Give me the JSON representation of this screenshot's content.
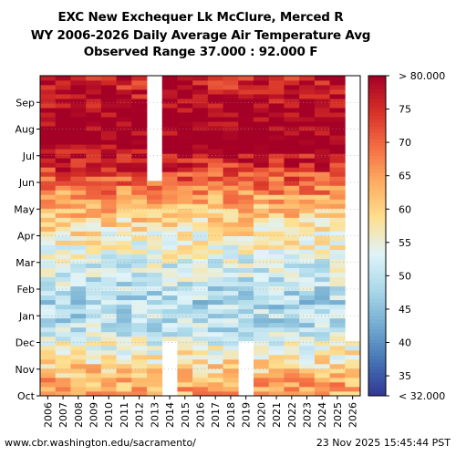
{
  "chart_data": {
    "type": "heatmap",
    "title": "EXC New Exchequer Lk McClure, Merced R",
    "subtitle": "WY 2006-2026 Daily Average Air Temperature Avg",
    "range_text": "Observed Range 37.000 : 92.000 F",
    "x_categories": [
      "2006",
      "2007",
      "2008",
      "2009",
      "2010",
      "2011",
      "2012",
      "2013",
      "2014",
      "2015",
      "2016",
      "2017",
      "2018",
      "2019",
      "2020",
      "2021",
      "2022",
      "2023",
      "2024",
      "2025",
      "2026"
    ],
    "y_month_ticks": [
      "Oct",
      "Nov",
      "Dec",
      "Jan",
      "Feb",
      "Mar",
      "Apr",
      "May",
      "Jun",
      "Jul",
      "Aug",
      "Sep"
    ],
    "colorbar": {
      "min": 32,
      "max": 80,
      "units": "F",
      "ticks": [
        35,
        40,
        45,
        50,
        55,
        60,
        65,
        70,
        75
      ],
      "top_label": "> 80.000",
      "bottom_label": "< 32.000"
    },
    "monthly_profile": [
      {
        "month": "Oct",
        "value": 64
      },
      {
        "month": "Nov",
        "value": 57
      },
      {
        "month": "Dec",
        "value": 50
      },
      {
        "month": "Jan",
        "value": 48
      },
      {
        "month": "Feb",
        "value": 51
      },
      {
        "month": "Mar",
        "value": 55
      },
      {
        "month": "Apr",
        "value": 59
      },
      {
        "month": "May",
        "value": 66
      },
      {
        "month": "Jun",
        "value": 74
      },
      {
        "month": "Jul",
        "value": 82
      },
      {
        "month": "Aug",
        "value": 81
      },
      {
        "month": "Sep",
        "value": 77
      }
    ],
    "missing": [
      {
        "water_year": "2013",
        "from_month": "Jun",
        "to_month": "Sep"
      },
      {
        "water_year": "2014",
        "from_month": "Oct",
        "to_month": "Nov"
      },
      {
        "water_year": "2019",
        "from_month": "Oct",
        "to_month": "Nov"
      },
      {
        "water_year": "2026",
        "from_month": "Dec",
        "to_month": "Sep"
      }
    ]
  },
  "footer": {
    "url": "www.cbr.washington.edu/sacramento/",
    "timestamp": "23 Nov 2025 15:45:44 PST"
  },
  "colors": {
    "scale": [
      "#313695",
      "#4575b4",
      "#74add1",
      "#abd9e9",
      "#e0f3f8",
      "#fee090",
      "#fdae61",
      "#f46d43",
      "#d73027",
      "#a50026"
    ]
  }
}
